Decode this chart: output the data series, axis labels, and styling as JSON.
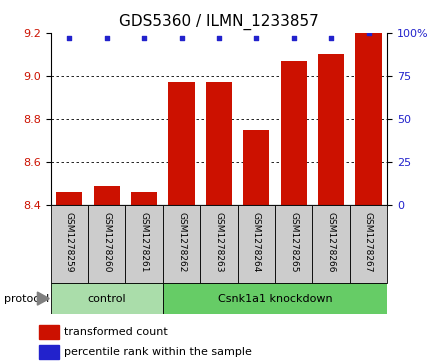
{
  "title": "GDS5360 / ILMN_1233857",
  "samples": [
    "GSM1278259",
    "GSM1278260",
    "GSM1278261",
    "GSM1278262",
    "GSM1278263",
    "GSM1278264",
    "GSM1278265",
    "GSM1278266",
    "GSM1278267"
  ],
  "transformed_counts": [
    8.46,
    8.49,
    8.46,
    8.97,
    8.97,
    8.75,
    9.07,
    9.1,
    9.2
  ],
  "percentile_ranks": [
    97,
    97,
    97,
    97,
    97,
    97,
    97,
    97,
    100
  ],
  "ylim_left": [
    8.4,
    9.2
  ],
  "ylim_right": [
    0,
    100
  ],
  "yticks_left": [
    8.4,
    8.6,
    8.8,
    9.0,
    9.2
  ],
  "yticks_right": [
    0,
    25,
    50,
    75,
    100
  ],
  "bar_color": "#cc1100",
  "dot_color": "#2222cc",
  "bg_color": "#cccccc",
  "control_color": "#aaddaa",
  "knockdown_color": "#66cc66",
  "protocol_label": "protocol",
  "control_label": "control",
  "knockdown_label": "Csnk1a1 knockdown",
  "legend_bar_label": "transformed count",
  "legend_dot_label": "percentile rank within the sample",
  "title_fontsize": 11,
  "tick_fontsize": 8,
  "label_fontsize": 8
}
